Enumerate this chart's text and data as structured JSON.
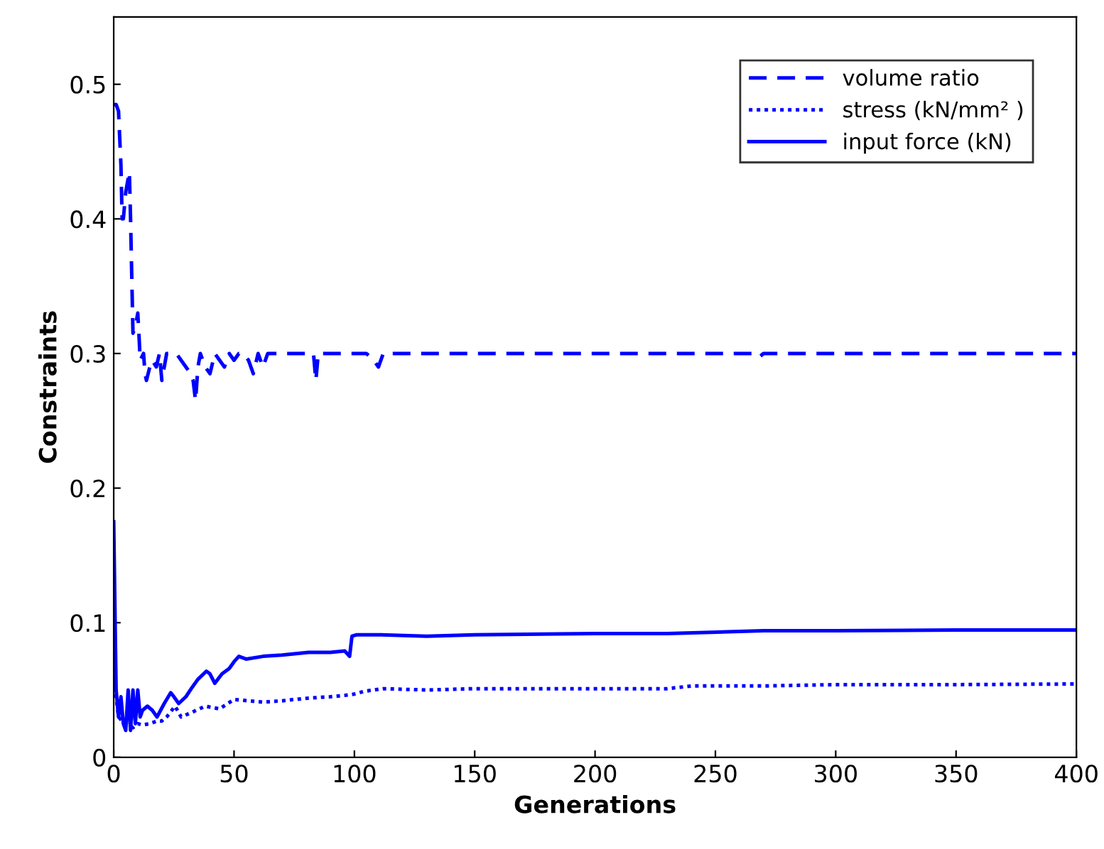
{
  "chart_data": {
    "type": "line",
    "xlabel": "Generations",
    "ylabel": "Constraints",
    "xlim": [
      0,
      400
    ],
    "ylim": [
      0,
      0.55
    ],
    "xticks": [
      0,
      50,
      100,
      150,
      200,
      250,
      300,
      350,
      400
    ],
    "yticks": [
      0,
      0.1,
      0.2,
      0.3,
      0.4,
      0.5
    ],
    "grid": false,
    "legend": "top right",
    "series": [
      {
        "name": "volume ratio",
        "color": "#0000ff",
        "line_style": "dashed",
        "x": [
          0,
          1,
          2,
          3,
          3.5,
          4,
          5,
          6,
          6.5,
          7,
          8,
          9,
          10,
          10.6,
          11,
          12.4,
          13,
          13.6,
          15,
          16,
          17.7,
          19,
          20,
          22,
          24,
          26,
          28,
          30,
          32,
          33,
          34,
          35,
          36,
          38,
          40,
          42,
          44,
          46,
          48,
          50,
          52,
          54,
          56,
          58,
          60,
          62,
          64,
          66,
          70,
          80,
          83,
          84,
          85,
          90,
          100,
          105,
          108,
          110,
          112,
          120,
          150,
          200,
          250,
          265,
          268,
          270,
          300,
          350,
          400
        ],
        "values": [
          0.485,
          0.485,
          0.48,
          0.44,
          0.4,
          0.4,
          0.42,
          0.43,
          0.435,
          0.4,
          0.315,
          0.32,
          0.33,
          0.31,
          0.295,
          0.3,
          0.285,
          0.28,
          0.29,
          0.295,
          0.29,
          0.3,
          0.28,
          0.3,
          0.3,
          0.3,
          0.295,
          0.29,
          0.285,
          0.28,
          0.265,
          0.29,
          0.3,
          0.29,
          0.285,
          0.3,
          0.295,
          0.29,
          0.3,
          0.295,
          0.3,
          0.3,
          0.295,
          0.285,
          0.3,
          0.29,
          0.3,
          0.3,
          0.3,
          0.3,
          0.3,
          0.28,
          0.3,
          0.3,
          0.3,
          0.3,
          0.295,
          0.29,
          0.3,
          0.3,
          0.3,
          0.3,
          0.3,
          0.3,
          0.297,
          0.3,
          0.3,
          0.3,
          0.3
        ]
      },
      {
        "name": "stress (kN/mm² )",
        "color": "#0000ff",
        "line_style": "dotted",
        "x": [
          0,
          1,
          2,
          4,
          6,
          8,
          10,
          12,
          15,
          18,
          20,
          22,
          25.5,
          28,
          32,
          38,
          44,
          50,
          56,
          62,
          70,
          81,
          90,
          96,
          100,
          104,
          112,
          130,
          150,
          200,
          230,
          240,
          270,
          300,
          350,
          400
        ],
        "values": [
          0.07,
          0.045,
          0.03,
          0.026,
          0.024,
          0.022,
          0.025,
          0.024,
          0.025,
          0.027,
          0.027,
          0.03,
          0.038,
          0.03,
          0.033,
          0.038,
          0.036,
          0.043,
          0.042,
          0.041,
          0.042,
          0.044,
          0.045,
          0.046,
          0.047,
          0.049,
          0.051,
          0.05,
          0.051,
          0.051,
          0.051,
          0.053,
          0.053,
          0.054,
          0.054,
          0.0545
        ]
      },
      {
        "name": "input force (kN)",
        "color": "#0000ff",
        "line_style": "solid",
        "x": [
          0,
          1,
          2,
          3,
          4,
          5,
          6,
          7,
          8,
          9,
          10,
          11,
          12,
          14,
          16,
          18,
          19.5,
          21,
          23.7,
          25,
          27,
          30,
          32.6,
          35,
          38.5,
          40,
          42,
          45,
          48,
          50,
          52,
          55,
          62,
          70,
          81,
          90,
          96,
          98,
          99,
          101,
          111,
          130,
          150,
          200,
          230,
          270,
          300,
          350,
          400
        ],
        "values": [
          0.175,
          0.05,
          0.03,
          0.045,
          0.025,
          0.02,
          0.05,
          0.02,
          0.05,
          0.025,
          0.05,
          0.03,
          0.035,
          0.038,
          0.035,
          0.03,
          0.035,
          0.04,
          0.048,
          0.045,
          0.04,
          0.045,
          0.052,
          0.058,
          0.064,
          0.062,
          0.055,
          0.062,
          0.066,
          0.071,
          0.075,
          0.073,
          0.075,
          0.076,
          0.078,
          0.078,
          0.079,
          0.075,
          0.09,
          0.091,
          0.091,
          0.09,
          0.091,
          0.092,
          0.092,
          0.094,
          0.094,
          0.0946,
          0.0946
        ]
      }
    ]
  }
}
